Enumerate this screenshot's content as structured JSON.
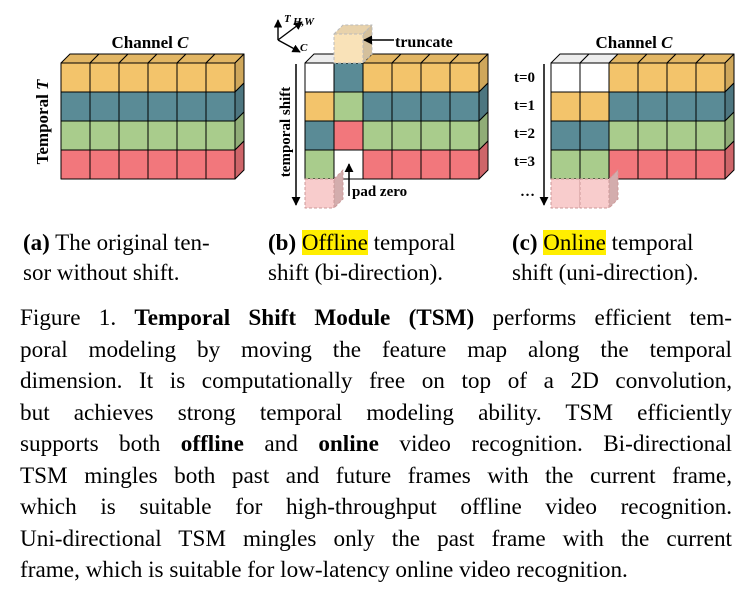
{
  "colors": {
    "orange": "#f3c46b",
    "teal": "#5a8b96",
    "green": "#a9cc8c",
    "red": "#f2777c",
    "white": "#ffffff",
    "pad_fill": "#f8cccc",
    "truncate_fill": "#f9e2b8",
    "highlight": "#ffee00"
  },
  "panel_a": {
    "title_prefix": "Channel",
    "title_var": "C",
    "side_label_prefix": "Temporal",
    "side_label_var": "T"
  },
  "panel_b": {
    "axis_t": "T",
    "axis_hw": "H,W",
    "axis_c": "C",
    "truncate_label": "truncate",
    "temporal_shift_label": "temporal shift",
    "pad_zero_label": "pad zero"
  },
  "panel_c": {
    "title_prefix": "Channel",
    "title_var": "C",
    "time_labels": [
      "t=0",
      "t=1",
      "t=2",
      "t=3"
    ],
    "ellipsis": "…"
  },
  "subcaptions": {
    "a": {
      "tag": "(a)",
      "line1": " The original ten-",
      "line2": "sor without shift."
    },
    "b": {
      "tag": "(b)",
      "highlight": "Offline",
      "line1_rest": " temporal",
      "line2": "shift (bi-direction)."
    },
    "c": {
      "tag": "(c)",
      "highlight": "Online",
      "line1_rest": " temporal",
      "line2": "shift (uni-direction)."
    }
  },
  "caption": {
    "l1_a": "Figure 1. ",
    "l1_b": "Temporal Shift Module (TSM)",
    "l1_c": " performs efficient tem-",
    "l2": "poral modeling by moving the feature map along the temporal",
    "l3": "dimension. It is computationally free on top of a 2D convolution,",
    "l4": "but achieves strong temporal modeling ability.  TSM efficiently",
    "l5_a": "supports both ",
    "l5_b": "offline",
    "l5_c": " and ",
    "l5_d": "online",
    "l5_e": " video recognition. Bi-directional",
    "l6": "TSM mingles both past and future frames with the current frame,",
    "l7": "which is suitable for high-throughput offline video recognition.",
    "l8": "Uni-directional TSM mingles only the past frame with the current",
    "l9": "frame, which is suitable for low-latency online video recognition."
  }
}
